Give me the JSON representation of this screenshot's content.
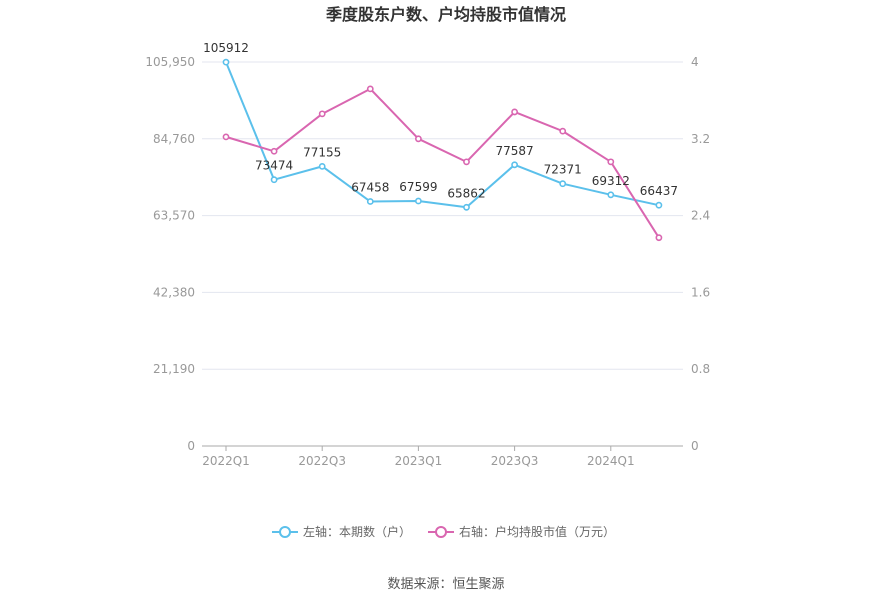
{
  "chart_data": {
    "type": "line",
    "title": "季度股东户数、户均持股市值情况",
    "categories": [
      "2022Q1",
      "2022Q2",
      "2022Q3",
      "2022Q4",
      "2023Q1",
      "2023Q2",
      "2023Q3",
      "2023Q4",
      "2024Q1",
      "2024Q2"
    ],
    "x_tick_labels": [
      "2022Q1",
      "2022Q3",
      "2023Q1",
      "2023Q3",
      "2024Q1"
    ],
    "left_axis": {
      "ylim": [
        0,
        105950
      ],
      "ticks": [
        0,
        21190,
        42380,
        63570,
        84760,
        105950
      ],
      "tick_labels": [
        "0",
        "21,190",
        "42,380",
        "63,570",
        "84,760",
        "105,950"
      ]
    },
    "right_axis": {
      "ylim": [
        0,
        4
      ],
      "ticks": [
        0,
        0.8,
        1.6,
        2.4,
        3.2,
        4
      ],
      "tick_labels": [
        "0",
        "0.8",
        "1.6",
        "2.4",
        "3.2",
        "4"
      ]
    },
    "series": [
      {
        "name": "左轴：本期数（户）",
        "axis": "left",
        "color": "#5bc0eb",
        "values": [
          105912,
          73474,
          77155,
          67458,
          67599,
          65862,
          77587,
          72371,
          69312,
          66437
        ],
        "labels": [
          "105912",
          "73474",
          "77155",
          "67458",
          "67599",
          "65862",
          "77587",
          "72371",
          "69312",
          "66437"
        ]
      },
      {
        "name": "右轴：户均持股市值（万元）",
        "axis": "right",
        "color": "#d966b0",
        "values": [
          3.22,
          3.07,
          3.46,
          3.72,
          3.2,
          2.96,
          3.48,
          3.28,
          2.96,
          2.17
        ]
      }
    ],
    "grid": true,
    "legend_position": "bottom"
  },
  "source": "数据来源：恒生聚源"
}
